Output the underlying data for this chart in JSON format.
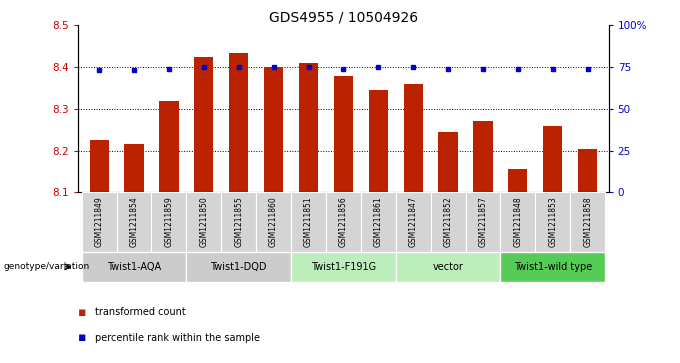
{
  "title": "GDS4955 / 10504926",
  "samples": [
    "GSM1211849",
    "GSM1211854",
    "GSM1211859",
    "GSM1211850",
    "GSM1211855",
    "GSM1211860",
    "GSM1211851",
    "GSM1211856",
    "GSM1211861",
    "GSM1211847",
    "GSM1211852",
    "GSM1211857",
    "GSM1211848",
    "GSM1211853",
    "GSM1211858"
  ],
  "bar_values": [
    8.225,
    8.215,
    8.32,
    8.425,
    8.435,
    8.4,
    8.41,
    8.38,
    8.345,
    8.36,
    8.245,
    8.27,
    8.155,
    8.26,
    8.205
  ],
  "percentile_values": [
    73,
    73,
    74,
    75,
    75,
    75,
    75,
    74,
    75,
    75,
    74,
    74,
    74,
    74,
    74
  ],
  "groups": [
    {
      "label": "Twist1-AQA",
      "indices": [
        0,
        1,
        2
      ],
      "color": "#cccccc"
    },
    {
      "label": "Twist1-DQD",
      "indices": [
        3,
        4,
        5
      ],
      "color": "#cccccc"
    },
    {
      "label": "Twist1-F191G",
      "indices": [
        6,
        7,
        8
      ],
      "color": "#bbeebb"
    },
    {
      "label": "vector",
      "indices": [
        9,
        10,
        11
      ],
      "color": "#bbeebb"
    },
    {
      "label": "Twist1-wild type",
      "indices": [
        12,
        13,
        14
      ],
      "color": "#55cc55"
    }
  ],
  "ylim": [
    8.1,
    8.5
  ],
  "yticks": [
    8.1,
    8.2,
    8.3,
    8.4,
    8.5
  ],
  "right_yticks": [
    0,
    25,
    50,
    75,
    100
  ],
  "right_ylabels": [
    "0",
    "25",
    "50",
    "75",
    "100%"
  ],
  "bar_color": "#bb2200",
  "percentile_color": "#0000cc",
  "bar_bottom": 8.1,
  "left_tick_color": "#cc0000",
  "right_tick_color": "#0000cc",
  "title_fontsize": 10,
  "tick_fontsize": 7.5,
  "sample_fontsize": 5.5,
  "group_fontsize": 7,
  "legend_fontsize": 7
}
